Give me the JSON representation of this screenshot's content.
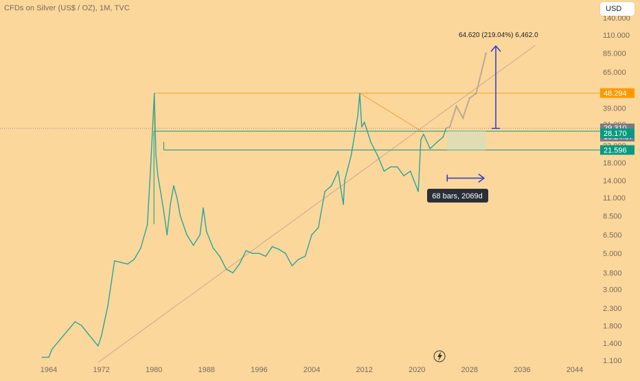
{
  "header": {
    "title": "CFDs on Silver (US$ / OZ), 1M, TVC",
    "currency": "USD"
  },
  "chart_data": {
    "type": "line",
    "y_scale": "log",
    "ylim": [
      1.1,
      140
    ],
    "xlim": [
      1962.5,
      2048
    ],
    "x_ticks": [
      "1964",
      "1972",
      "1980",
      "1988",
      "1996",
      "2004",
      "2012",
      "2020",
      "2028",
      "2036",
      "2044"
    ],
    "y_ticks": [
      "140.000",
      "110.000",
      "85.000",
      "65.000",
      "39.000",
      "31.000",
      "23.000",
      "18.000",
      "14.000",
      "11.000",
      "8.500",
      "6.500",
      "5.000",
      "3.800",
      "3.000",
      "2.300",
      "1.800",
      "1.400",
      "1.100"
    ],
    "series": [
      {
        "color": "#26a69a",
        "x": [
          1963,
          1964,
          1964.5,
          1968,
          1969,
          1970,
          1971.5,
          1972,
          1973,
          1974,
          1975,
          1976,
          1977,
          1978,
          1979,
          1979.5,
          1980.05,
          1980.3,
          1980.6,
          1981,
          1981.5,
          1982,
          1982.5,
          1983,
          1983.5,
          1984,
          1985,
          1986,
          1987,
          1987.5,
          1988,
          1989,
          1990,
          1991,
          1992,
          1993,
          1994,
          1995,
          1996,
          1997,
          1998,
          1999,
          2000,
          2001,
          2002,
          2003,
          2004,
          2005,
          2006,
          2007,
          2008,
          2008.8,
          2009,
          2010,
          2011,
          2011.3,
          2011.6,
          2012,
          2013,
          2014,
          2015,
          2016,
          2017,
          2018,
          2019,
          2020.2,
          2020.6,
          2021,
          2022,
          2023,
          2024,
          2024.4
        ],
        "values": [
          1.15,
          1.15,
          1.29,
          1.9,
          1.8,
          1.6,
          1.35,
          1.55,
          2.4,
          4.5,
          4.4,
          4.3,
          4.6,
          5.4,
          7.5,
          17,
          48.0,
          20,
          15,
          12,
          9,
          6.5,
          10,
          13,
          11,
          8.5,
          6.5,
          5.6,
          6.5,
          9.5,
          6.8,
          5.4,
          4.8,
          4.0,
          3.8,
          4.3,
          5.2,
          5.0,
          5.0,
          4.8,
          5.5,
          5.3,
          5.0,
          4.2,
          4.6,
          4.8,
          6.5,
          7.2,
          12,
          13,
          16,
          10,
          14,
          20,
          35,
          48.0,
          30,
          32,
          24,
          20,
          16,
          17,
          17,
          15,
          16,
          12,
          25,
          27,
          22,
          24,
          26,
          29.31
        ]
      }
    ],
    "projection": {
      "color": "#b0a395",
      "x": [
        2024.4,
        2025,
        2026,
        2027,
        2028,
        2029,
        2030.5
      ],
      "values": [
        29.31,
        30,
        40,
        34,
        45,
        48,
        85
      ]
    },
    "annotations": {
      "upper_label": "64.620 (219.04%) 6,462.0",
      "lower_label": "68 bars, 2069d",
      "levels": [
        48.294,
        29.31,
        28.17,
        21.596
      ],
      "arrow_from": 29.31,
      "arrow_to": 94.0,
      "range_start_x": 2024.6,
      "range_end_x": 2030.2,
      "range_y": 14.5,
      "trendline": [
        [
          1971.5,
          1.07
        ],
        [
          2038,
          95
        ]
      ]
    },
    "price_labels": [
      {
        "value": "48.294",
        "bg": "#ff9800",
        "fg": "#ffffff"
      },
      {
        "value": "29.310",
        "bg": "#787b86",
        "fg": "#ffffff"
      },
      {
        "value": "10:24:07",
        "bg": "#787b86",
        "fg": "#ffffff"
      },
      {
        "value": "28.170",
        "bg": "#089981",
        "fg": "#ffffff"
      },
      {
        "value": "21.596",
        "bg": "#089981",
        "fg": "#ffffff"
      }
    ]
  }
}
